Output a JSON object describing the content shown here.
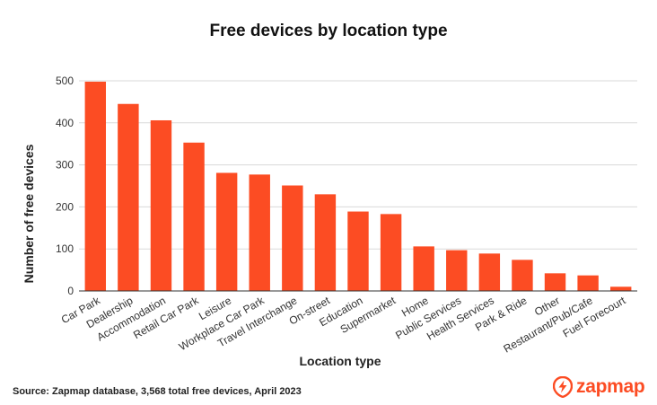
{
  "colors": {
    "bar": "#fc4c23",
    "grid": "#d9d9d9",
    "axis": "#333333",
    "brand": "#fc4c23"
  },
  "chart_data": {
    "type": "bar",
    "title": "Free devices by location type",
    "xlabel": "Location type",
    "ylabel": "Number of free devices",
    "ylim": [
      0,
      500
    ],
    "yticks": [
      0,
      100,
      200,
      300,
      400,
      500
    ],
    "grid": true,
    "categories": [
      "Car Park",
      "Dealership",
      "Accommodation",
      "Retail Car Park",
      "Leisure",
      "Workplace Car Park",
      "Travel Interchange",
      "On-street",
      "Education",
      "Supermarket",
      "Home",
      "Public Services",
      "Health Services",
      "Park & Ride",
      "Other",
      "Restaurant/Pub/Cafe",
      "Fuel Forecourt"
    ],
    "values": [
      498,
      445,
      406,
      353,
      281,
      277,
      251,
      230,
      189,
      183,
      106,
      97,
      89,
      74,
      42,
      37,
      10
    ]
  },
  "footer": {
    "source": "Source: Zapmap database, 3,568 total free devices, April 2023",
    "brand": "zapmap",
    "brand_icon": "zapmap-logo-icon"
  }
}
